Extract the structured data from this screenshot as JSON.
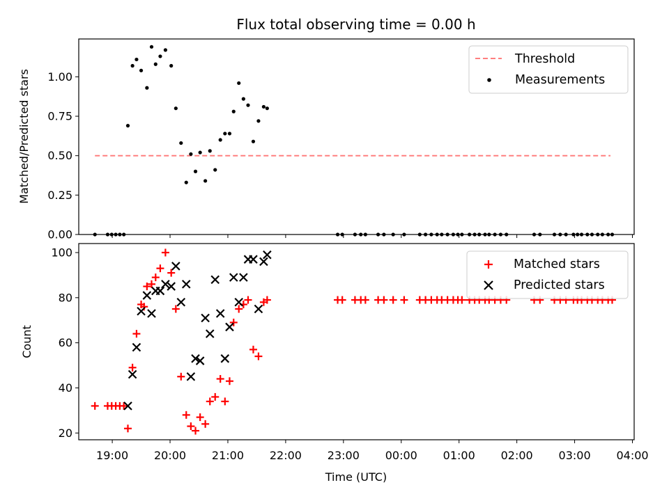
{
  "chart_data": [
    {
      "type": "scatter",
      "title": "Flux total observing time = 0.00 h",
      "xlabel": "",
      "ylabel": "Matched/Predicted stars",
      "xlim": [
        18.42,
        28.03
      ],
      "ylim": [
        0,
        1.24
      ],
      "yticks": [
        0.0,
        0.25,
        0.5,
        0.75,
        1.0
      ],
      "ytick_labels": [
        "0.00",
        "0.25",
        "0.50",
        "0.75",
        "1.00"
      ],
      "legend": [
        {
          "label": "Threshold",
          "style": "dashed-line",
          "color": "#ff7f7f"
        },
        {
          "label": "Measurements",
          "style": "dot",
          "color": "#000000"
        }
      ],
      "legend_position": "top-right",
      "threshold": {
        "x": [
          18.7,
          27.62
        ],
        "y": 0.5
      },
      "series": [
        {
          "name": "Measurements",
          "x": [
            18.7,
            18.92,
            18.99,
            19.06,
            19.13,
            19.2,
            19.27,
            19.35,
            19.42,
            19.5,
            19.6,
            19.68,
            19.75,
            19.83,
            19.92,
            20.02,
            20.1,
            20.19,
            20.28,
            20.36,
            20.44,
            20.52,
            20.61,
            20.69,
            20.78,
            20.87,
            20.95,
            21.03,
            21.1,
            21.19,
            21.27,
            21.35,
            21.44,
            21.53,
            21.62,
            21.68,
            22.9,
            22.98,
            23.2,
            23.3,
            23.38,
            23.6,
            23.7,
            23.86,
            24.05,
            24.32,
            24.42,
            24.52,
            24.62,
            24.7,
            24.8,
            24.9,
            24.98,
            25.05,
            25.18,
            25.27,
            25.35,
            25.45,
            25.52,
            25.62,
            25.72,
            25.82,
            26.3,
            26.4,
            26.65,
            26.75,
            26.85,
            26.98,
            27.05,
            27.12,
            27.22,
            27.3,
            27.4,
            27.48,
            27.58,
            27.65
          ],
          "y": [
            0.0,
            0.0,
            0.0,
            0.0,
            0.0,
            0.0,
            0.69,
            1.07,
            1.11,
            1.04,
            0.93,
            1.19,
            1.08,
            1.13,
            1.17,
            1.07,
            0.8,
            0.58,
            0.33,
            0.51,
            0.4,
            0.52,
            0.34,
            0.53,
            0.41,
            0.6,
            0.64,
            0.64,
            0.78,
            0.96,
            0.86,
            0.82,
            0.59,
            0.72,
            0.81,
            0.8,
            0.0,
            0.0,
            0.0,
            0.0,
            0.0,
            0.0,
            0.0,
            0.0,
            0.0,
            0.0,
            0.0,
            0.0,
            0.0,
            0.0,
            0.0,
            0.0,
            0.0,
            0.0,
            0.0,
            0.0,
            0.0,
            0.0,
            0.0,
            0.0,
            0.0,
            0.0,
            0.0,
            0.0,
            0.0,
            0.0,
            0.0,
            0.0,
            0.0,
            0.0,
            0.0,
            0.0,
            0.0,
            0.0,
            0.0,
            0.0
          ]
        }
      ]
    },
    {
      "type": "scatter",
      "title": "",
      "xlabel": "Time (UTC)",
      "ylabel": "Count",
      "xlim": [
        18.42,
        28.03
      ],
      "ylim": [
        17,
        104
      ],
      "yticks": [
        20,
        40,
        60,
        80,
        100
      ],
      "ytick_labels": [
        "20",
        "40",
        "60",
        "80",
        "100"
      ],
      "xticks": [
        19,
        20,
        21,
        22,
        23,
        24,
        25,
        26,
        27,
        28
      ],
      "xtick_labels": [
        "19:00",
        "20:00",
        "21:00",
        "22:00",
        "23:00",
        "00:00",
        "01:00",
        "02:00",
        "03:00",
        "04:00"
      ],
      "legend": [
        {
          "label": "Matched stars",
          "style": "plus",
          "color": "#ff0000"
        },
        {
          "label": "Predicted stars",
          "style": "cross",
          "color": "#000000"
        }
      ],
      "legend_position": "top-right",
      "series": [
        {
          "name": "Matched stars",
          "x": [
            18.7,
            18.92,
            18.99,
            19.06,
            19.13,
            19.2,
            19.27,
            19.35,
            19.42,
            19.5,
            19.55,
            19.6,
            19.68,
            19.75,
            19.83,
            19.92,
            20.02,
            20.1,
            20.19,
            20.28,
            20.36,
            20.44,
            20.52,
            20.61,
            20.69,
            20.78,
            20.87,
            20.95,
            21.03,
            21.1,
            21.19,
            21.27,
            21.35,
            21.44,
            21.53,
            21.62,
            21.68,
            22.9,
            22.98,
            23.2,
            23.3,
            23.38,
            23.6,
            23.7,
            23.86,
            24.05,
            24.32,
            24.42,
            24.52,
            24.62,
            24.7,
            24.8,
            24.9,
            24.98,
            25.05,
            25.18,
            25.27,
            25.35,
            25.45,
            25.52,
            25.62,
            25.72,
            25.82,
            26.3,
            26.4,
            26.65,
            26.75,
            26.85,
            26.98,
            27.05,
            27.12,
            27.22,
            27.3,
            27.4,
            27.48,
            27.58,
            27.65
          ],
          "y": [
            32,
            32,
            32,
            32,
            32,
            32,
            22,
            49,
            64,
            77,
            76,
            85,
            86,
            89,
            93,
            100,
            91,
            75,
            45,
            28,
            23,
            21,
            27,
            24,
            34,
            36,
            44,
            34,
            43,
            69,
            75,
            77,
            79,
            57,
            54,
            78,
            79,
            79,
            79,
            79,
            79,
            79,
            79,
            79,
            79,
            79,
            79,
            79,
            79,
            79,
            79,
            79,
            79,
            79,
            79,
            79,
            79,
            79,
            79,
            79,
            79,
            79,
            79,
            79,
            79,
            79,
            79,
            79,
            79,
            79,
            79,
            79,
            79,
            79,
            79,
            79,
            79
          ]
        },
        {
          "name": "Predicted stars",
          "x": [
            19.27,
            19.35,
            19.42,
            19.5,
            19.6,
            19.68,
            19.75,
            19.83,
            19.92,
            20.02,
            20.1,
            20.19,
            20.28,
            20.36,
            20.44,
            20.52,
            20.61,
            20.69,
            20.78,
            20.87,
            20.95,
            21.03,
            21.1,
            21.19,
            21.27,
            21.35,
            21.44,
            21.53,
            21.62,
            21.68
          ],
          "y": [
            32,
            46,
            58,
            74,
            81,
            73,
            83,
            83,
            86,
            85,
            94,
            78,
            86,
            45,
            53,
            52,
            71,
            64,
            88,
            73,
            53,
            67,
            89,
            78,
            89,
            97,
            97,
            75,
            96,
            99
          ]
        }
      ]
    }
  ]
}
